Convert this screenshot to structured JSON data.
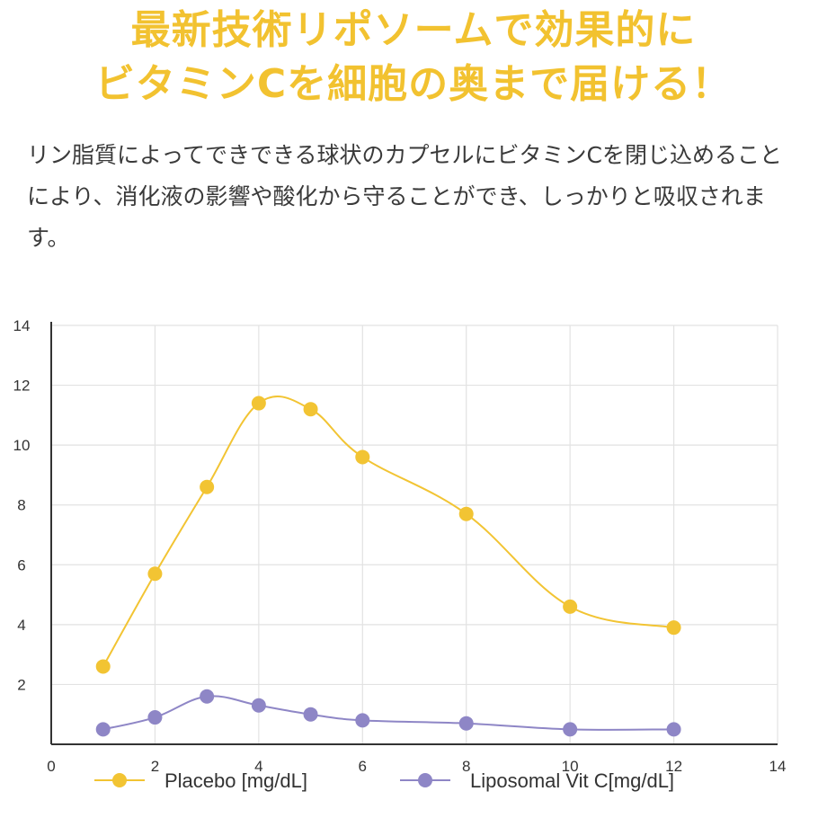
{
  "headline": {
    "line1": "最新技術リポソームで効果的に",
    "line2": "ビタミンCを細胞の奥まで届ける！"
  },
  "body_text": "リン脂質によってできできる球状のカプセルにビタミンCを閉じ込めることにより、消化液の影響や酸化から守ることができ、しっかりと吸収されます。",
  "colors": {
    "placebo": "#f2c433",
    "liposomal": "#8e86c6",
    "headline": "#f2c230",
    "grid": "#e2e2e2"
  },
  "chart_data": {
    "type": "line",
    "xlim": [
      0,
      14
    ],
    "ylim": [
      0,
      14
    ],
    "x_ticks": [
      "0",
      "2",
      "4",
      "6",
      "8",
      "10",
      "12",
      "14"
    ],
    "y_ticks": [
      "2",
      "4",
      "6",
      "8",
      "10",
      "12",
      "14"
    ],
    "grid": true,
    "legend_position": "bottom",
    "series": [
      {
        "name": "Placebo [mg/dL]",
        "color": "#f2c433",
        "points": [
          [
            1,
            2.6
          ],
          [
            2,
            5.7
          ],
          [
            3,
            8.6
          ],
          [
            4,
            11.4
          ],
          [
            5,
            11.2
          ],
          [
            6,
            9.6
          ],
          [
            8,
            7.7
          ],
          [
            10,
            4.6
          ],
          [
            12,
            3.9
          ]
        ]
      },
      {
        "name": "Liposomal Vit C[mg/dL]",
        "color": "#8e86c6",
        "points": [
          [
            1,
            0.5
          ],
          [
            2,
            0.9
          ],
          [
            3,
            1.6
          ],
          [
            4,
            1.3
          ],
          [
            5,
            1.0
          ],
          [
            6,
            0.8
          ],
          [
            8,
            0.7
          ],
          [
            10,
            0.5
          ],
          [
            12,
            0.5
          ]
        ]
      }
    ]
  }
}
